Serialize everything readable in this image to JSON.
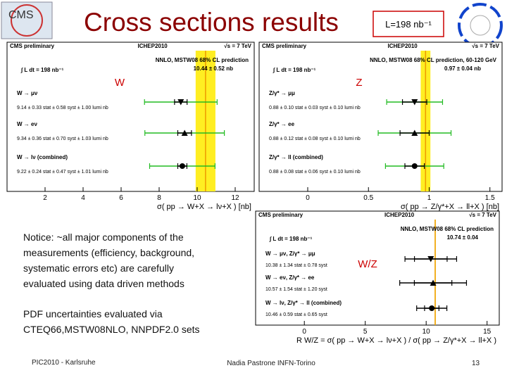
{
  "slide": {
    "title": "Cross sections results",
    "lumi_box": "L=198 nb⁻¹",
    "notice": [
      "Notice: ~all major components of the",
      "measurements (efficiency, background,",
      "systematic errors etc) are carefully",
      "evaluated using data driven methods"
    ],
    "pdf_note": [
      "PDF uncertainties evaluated via",
      "CTEQ66,MSTW08NLO, NNPDF2.0 sets"
    ],
    "footer_left": "PIC2010 - Karlsruhe",
    "footer_center": "Nadia Pastrone   INFN-Torino",
    "page_number": "13"
  },
  "chart_data": [
    {
      "type": "errorbar",
      "header": [
        "CMS preliminary",
        "ICHEP2010",
        "√s = 7 TeV"
      ],
      "lumi": "∫ L dt = 198 nb⁻¹",
      "label": "W",
      "prediction_title": "NNLO, MSTW08 68% CL prediction",
      "prediction_label": "10.44 ± 0.52 nb",
      "prediction": 10.44,
      "prediction_err": 0.52,
      "categories": [
        "W → μν",
        "W → eν",
        "W → lν   (combined)"
      ],
      "values": [
        9.14,
        9.34,
        9.22
      ],
      "stat": [
        0.33,
        0.36,
        0.24
      ],
      "syst": [
        0.58,
        0.7,
        0.47
      ],
      "lumi_err": [
        1.0,
        1.03,
        1.01
      ],
      "value_labels": [
        "9.14 ± 0.33 stat ± 0.58 syst ± 1.00 lumi nb",
        "9.34 ± 0.36 stat ± 0.70 syst ± 1.03 lumi nb",
        "9.22 ± 0.24 stat ± 0.47 syst ± 1.01 lumi nb"
      ],
      "markers": [
        "triangle-down",
        "triangle-up",
        "circle"
      ],
      "xlim": [
        0,
        13
      ],
      "xticks": [
        2,
        4,
        6,
        8,
        10,
        12
      ],
      "xlabel": "σ( pp → W+X → lν+X )  [nb]",
      "total_color": "#22bb22",
      "stat_color": "#000000",
      "band_color": "#ffee22",
      "line_color": "#ee9900"
    },
    {
      "type": "errorbar",
      "header": [
        "CMS preliminary",
        "ICHEP2010",
        "√s = 7 TeV"
      ],
      "lumi": "∫ L dt = 198 nb⁻¹",
      "label": "Z",
      "prediction_title": "NNLO, MSTW08 68% CL prediction, 60-120 GeV",
      "prediction_label": "0.97 ± 0.04 nb",
      "prediction": 0.97,
      "prediction_err": 0.04,
      "categories": [
        "Z/γ* → μμ",
        "Z/γ* → ee",
        "Z/γ* → ll   (combined)"
      ],
      "values": [
        0.88,
        0.88,
        0.88
      ],
      "stat": [
        0.1,
        0.12,
        0.08
      ],
      "syst": [
        0.03,
        0.08,
        0.06
      ],
      "lumi_err": [
        0.1,
        0.1,
        0.1
      ],
      "value_labels": [
        "0.88 ± 0.10 stat ± 0.03 syst ± 0.10 lumi nb",
        "0.88 ± 0.12 stat ± 0.08 syst ± 0.10 lumi nb",
        "0.88 ± 0.08 stat ± 0.06 syst ± 0.10 lumi nb"
      ],
      "markers": [
        "triangle-down",
        "triangle-up",
        "circle"
      ],
      "xlim": [
        -0.4,
        1.6
      ],
      "xticks": [
        0,
        0.5,
        1,
        1.5
      ],
      "xlabel": "σ( pp → Z/γ*+X → ll+X )  [nb]",
      "total_color": "#22bb22",
      "stat_color": "#000000",
      "band_color": "#ffee22",
      "line_color": "#ee9900"
    },
    {
      "type": "errorbar",
      "header": [
        "CMS preliminary",
        "ICHEP2010",
        "√s = 7 TeV"
      ],
      "lumi": "∫ L dt = 198 nb⁻¹",
      "label": "W/Z",
      "prediction_title": "NNLO, MSTW08 68% CL prediction",
      "prediction_label": "10.74 ± 0.04",
      "prediction": 10.74,
      "prediction_err": 0.04,
      "categories": [
        "W → μν,  Z/γ* → μμ",
        "W → eν,  Z/γ* → ee",
        "W → lν,  Z/γ* → ll   (combined)"
      ],
      "values": [
        10.38,
        10.57,
        10.46
      ],
      "stat": [
        1.34,
        1.54,
        0.59
      ],
      "syst": [
        0.78,
        1.2,
        0.65
      ],
      "value_labels": [
        "10.38 ± 1.34 stat ± 0.78 syst",
        "10.57 ± 1.54 stat ± 1.20 syst",
        "10.46 ± 0.59 stat ± 0.65 syst"
      ],
      "markers": [
        "triangle-down",
        "triangle-up",
        "circle"
      ],
      "xlim": [
        -4,
        16
      ],
      "xticks": [
        0,
        5,
        10,
        15
      ],
      "xlabel": "R W/Z = σ( pp → W+X → lν+X ) / σ( pp → Z/γ*+X → ll+X )",
      "total_color": "#000000",
      "stat_color": "#000000",
      "band_color": "#ffee22",
      "line_color": "#ee9900"
    }
  ]
}
